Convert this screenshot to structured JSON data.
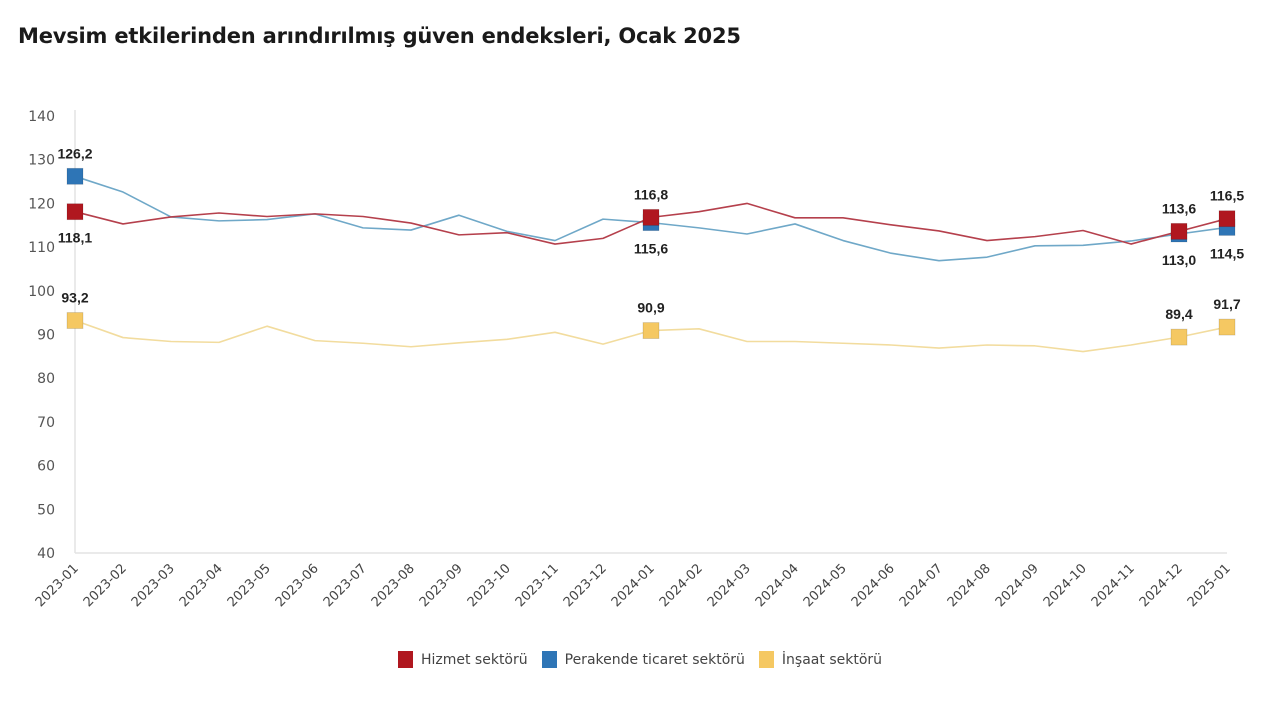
{
  "chart_data": {
    "type": "line",
    "title": "Mevsim etkilerinden arındırılmış güven endeksleri, Ocak 2025",
    "xlabel": "",
    "ylabel": "",
    "ylim": [
      40,
      140
    ],
    "yticks": [
      40,
      50,
      60,
      70,
      80,
      90,
      100,
      110,
      120,
      130,
      140
    ],
    "grid": false,
    "legend_position": "bottom",
    "categories": [
      "2023-01",
      "2023-02",
      "2023-03",
      "2023-04",
      "2023-05",
      "2023-06",
      "2023-07",
      "2023-08",
      "2023-09",
      "2023-10",
      "2023-11",
      "2023-12",
      "2024-01",
      "2024-02",
      "2024-03",
      "2024-04",
      "2024-05",
      "2024-06",
      "2024-07",
      "2024-08",
      "2024-09",
      "2024-10",
      "2024-11",
      "2024-12",
      "2025-01"
    ],
    "series": [
      {
        "name": "Hizmet sektörü",
        "marker_color": "#B0171F",
        "line_color": "#B5404C",
        "values": [
          118.1,
          115.3,
          116.9,
          117.8,
          117.0,
          117.6,
          117.0,
          115.5,
          112.8,
          113.3,
          110.7,
          112.0,
          116.8,
          118.1,
          120.0,
          116.7,
          116.7,
          115.1,
          113.7,
          111.5,
          112.4,
          113.8,
          110.7,
          113.6,
          116.5
        ],
        "labeled_points": [
          {
            "index": 0,
            "label": "118,1",
            "position": "below"
          },
          {
            "index": 12,
            "label": "116,8",
            "position": "above"
          },
          {
            "index": 23,
            "label": "113,6",
            "position": "above"
          },
          {
            "index": 24,
            "label": "116,5",
            "position": "above"
          }
        ]
      },
      {
        "name": "Perakende ticaret sektörü",
        "marker_color": "#2E75B6",
        "line_color": "#6FA8C8",
        "values": [
          126.2,
          122.6,
          116.9,
          116.0,
          116.3,
          117.6,
          114.4,
          113.9,
          117.3,
          113.6,
          111.5,
          116.4,
          115.6,
          114.4,
          113.0,
          115.3,
          111.5,
          108.6,
          106.9,
          107.7,
          110.3,
          110.4,
          111.4,
          113.0,
          114.5
        ],
        "labeled_points": [
          {
            "index": 0,
            "label": "126,2",
            "position": "above"
          },
          {
            "index": 12,
            "label": "115,6",
            "position": "below"
          },
          {
            "index": 23,
            "label": "113,0",
            "position": "below"
          },
          {
            "index": 24,
            "label": "114,5",
            "position": "below"
          }
        ]
      },
      {
        "name": "İnşaat sektörü",
        "marker_color": "#F5C862",
        "line_color": "#F2DC9E",
        "values": [
          93.2,
          89.3,
          88.4,
          88.2,
          91.9,
          88.6,
          88.0,
          87.2,
          88.1,
          88.9,
          90.5,
          87.8,
          90.9,
          91.3,
          88.4,
          88.4,
          88.0,
          87.6,
          86.9,
          87.6,
          87.4,
          86.1,
          87.6,
          89.4,
          91.7
        ],
        "labeled_points": [
          {
            "index": 0,
            "label": "93,2",
            "position": "above"
          },
          {
            "index": 12,
            "label": "90,9",
            "position": "above"
          },
          {
            "index": 23,
            "label": "89,4",
            "position": "above"
          },
          {
            "index": 24,
            "label": "91,7",
            "position": "above"
          }
        ]
      }
    ]
  }
}
